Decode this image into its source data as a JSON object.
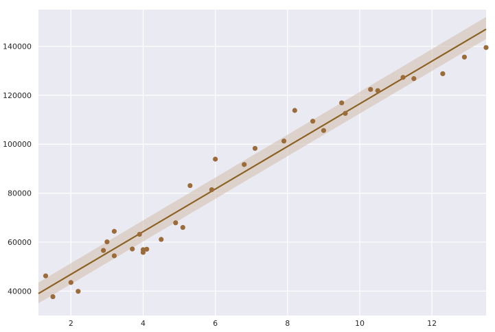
{
  "chart_data": {
    "type": "scatter",
    "title": "",
    "xlabel": "",
    "ylabel": "",
    "xlim": [
      1.1,
      13.5
    ],
    "ylim": [
      30000,
      155000
    ],
    "xticks": [
      "2",
      "4",
      "6",
      "8",
      "10",
      "12"
    ],
    "yticks": [
      "40000",
      "60000",
      "80000",
      "100000",
      "120000",
      "140000"
    ],
    "grid": true,
    "style": {
      "background": "#eaeaf2",
      "grid_color": "#ffffff",
      "point_color": "#9c6b3a",
      "line_color": "#8c6224",
      "ci_color": "#d4c1b0"
    },
    "series": [
      {
        "kind": "points",
        "x": [
          1.3,
          1.5,
          2.0,
          2.2,
          2.9,
          3.0,
          3.2,
          3.2,
          3.7,
          3.9,
          4.0,
          4.0,
          4.1,
          4.5,
          4.9,
          5.1,
          5.3,
          5.9,
          6.0,
          6.8,
          7.1,
          7.9,
          8.2,
          8.7,
          9.0,
          9.5,
          9.6,
          10.3,
          10.5,
          11.2,
          11.5,
          12.3,
          12.9,
          13.5
        ],
        "y": [
          46200,
          37700,
          43500,
          39900,
          56600,
          60100,
          54400,
          64400,
          57200,
          63200,
          55800,
          56900,
          57100,
          61100,
          67900,
          66000,
          83100,
          81400,
          93900,
          91700,
          98300,
          101300,
          113800,
          109400,
          105600,
          116900,
          112600,
          122400,
          121900,
          127300,
          126800,
          128800,
          135600,
          139500
        ]
      },
      {
        "kind": "regression",
        "x": [
          1.1,
          13.5
        ],
        "y": [
          39000,
          147000
        ],
        "ci_lower": [
          35000,
          143000
        ],
        "ci_upper": [
          43500,
          152000
        ]
      }
    ]
  }
}
